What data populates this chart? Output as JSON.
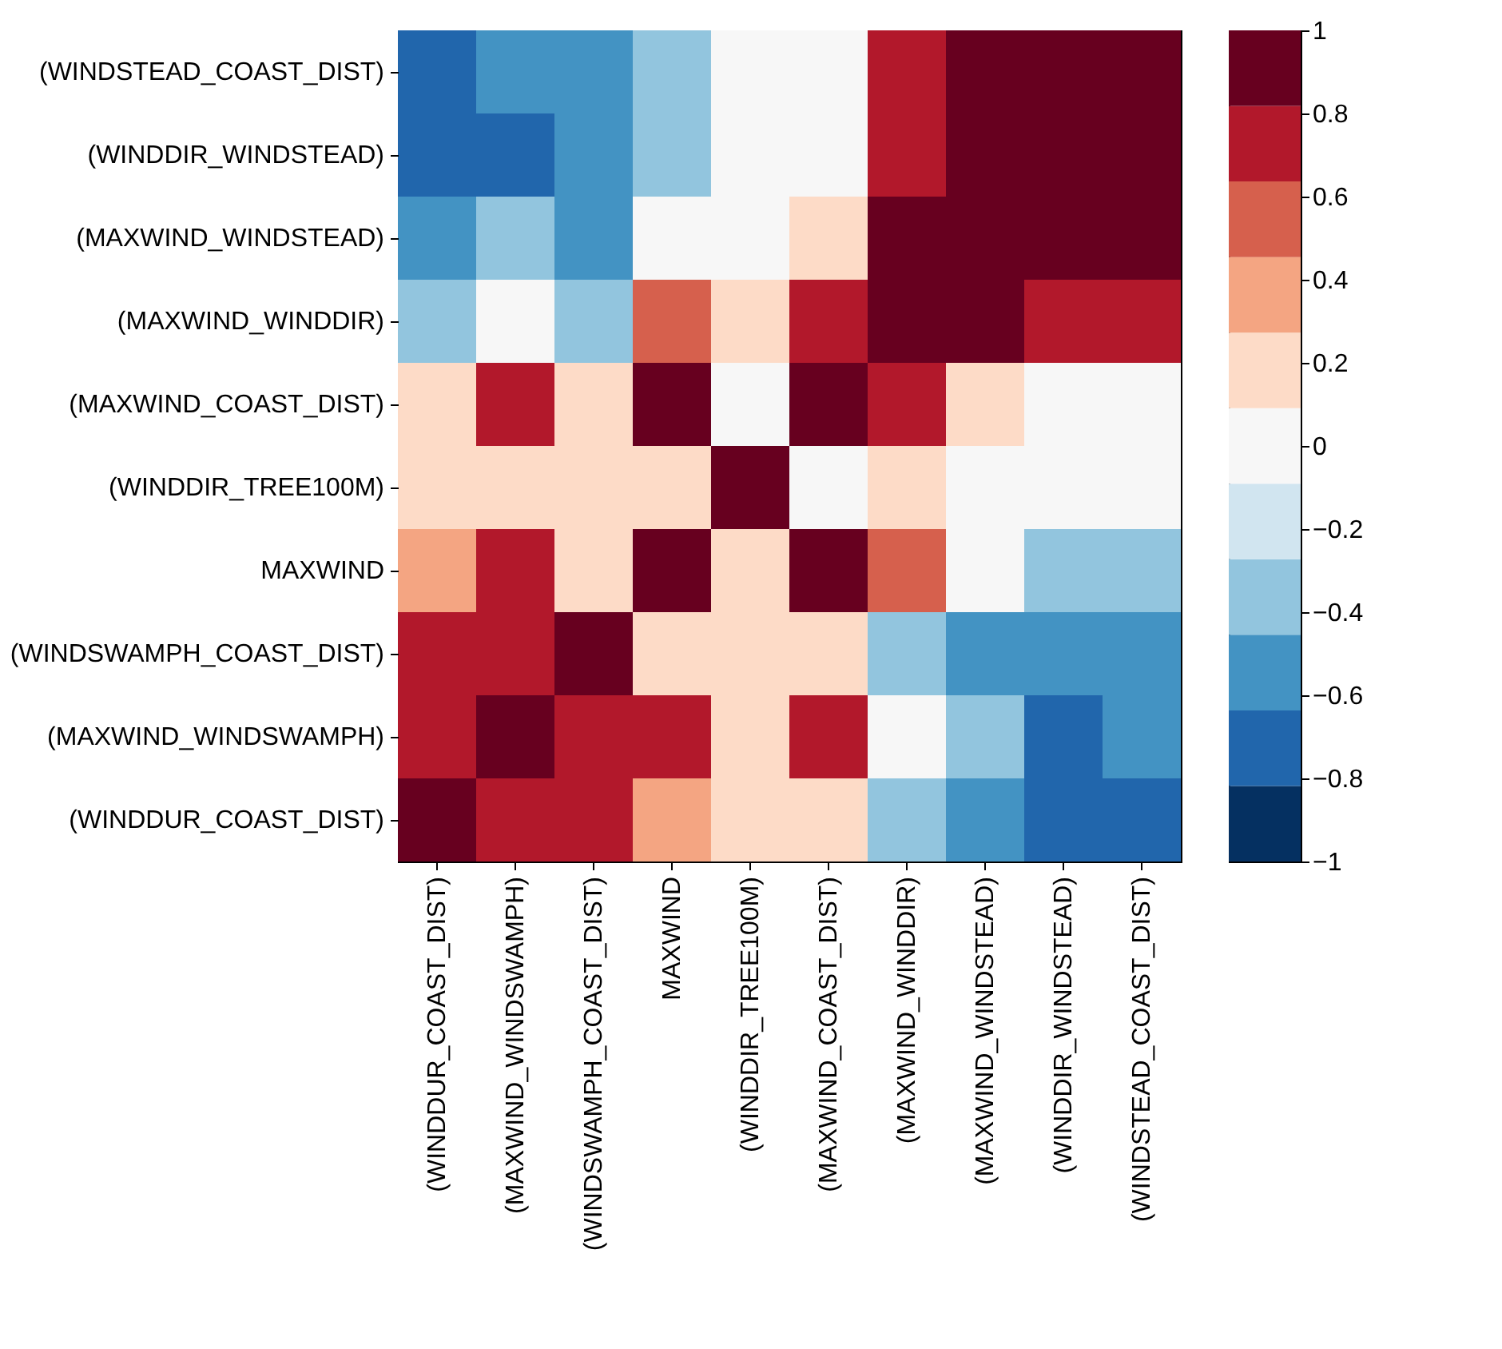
{
  "chart_data": {
    "type": "heatmap",
    "categories": [
      "(WINDDUR_COAST_DIST)",
      "(MAXWIND_WINDSWAMPH)",
      "(WINDSWAMPH_COAST_DIST)",
      "MAXWIND",
      "(WINDDIR_TREE100M)",
      "(MAXWIND_COAST_DIST)",
      "(MAXWIND_WINDDIR)",
      "(MAXWIND_WINDSTEAD)",
      "(WINDDIR_WINDSTEAD)",
      "(WINDSTEAD_COAST_DIST)"
    ],
    "y_categories": [
      "(WINDSTEAD_COAST_DIST)",
      "(WINDDIR_WINDSTEAD)",
      "(MAXWIND_WINDSTEAD)",
      "(MAXWIND_WINDDIR)",
      "(MAXWIND_COAST_DIST)",
      "(WINDDIR_TREE100M)",
      "MAXWIND",
      "(WINDSWAMPH_COAST_DIST)",
      "(MAXWIND_WINDSWAMPH)",
      "(WINDDUR_COAST_DIST)"
    ],
    "cells": [
      [
        -0.7,
        -0.5,
        -0.5,
        -0.4,
        0,
        0,
        0.7,
        0.9,
        0.9,
        1
      ],
      [
        -0.7,
        -0.7,
        -0.5,
        -0.4,
        0,
        0,
        0.7,
        0.9,
        1,
        0.9
      ],
      [
        -0.5,
        -0.4,
        -0.5,
        0,
        0,
        0.2,
        0.9,
        1,
        0.9,
        0.9
      ],
      [
        -0.4,
        0,
        -0.4,
        0.5,
        0.2,
        0.7,
        1,
        0.9,
        0.7,
        0.7
      ],
      [
        0.2,
        0.7,
        0.2,
        0.9,
        0,
        1,
        0.7,
        0.2,
        0,
        0
      ],
      [
        0.2,
        0.2,
        0.2,
        0.2,
        1,
        0,
        0.2,
        0,
        0,
        0
      ],
      [
        0.4,
        0.7,
        0.2,
        1,
        0.2,
        0.9,
        0.5,
        0,
        -0.4,
        -0.4
      ],
      [
        0.7,
        0.7,
        1,
        0.2,
        0.2,
        0.2,
        -0.4,
        -0.5,
        -0.5,
        -0.5
      ],
      [
        0.7,
        1,
        0.7,
        0.7,
        0.2,
        0.7,
        0,
        -0.4,
        -0.7,
        -0.5
      ],
      [
        1,
        0.7,
        0.7,
        0.4,
        0.2,
        0.2,
        -0.4,
        -0.5,
        -0.7,
        -0.7
      ]
    ],
    "clim": [
      -1,
      1
    ],
    "cticks": [
      -1,
      -0.8,
      -0.6,
      -0.4,
      -0.2,
      0,
      0.2,
      0.4,
      0.6,
      0.8,
      1
    ],
    "colors": [
      "#053061",
      "#2166ac",
      "#4393c3",
      "#92c5de",
      "#d1e5f0",
      "#f7f7f7",
      "#fddbc7",
      "#f4a582",
      "#d6604d",
      "#b2182b",
      "#67001f"
    ]
  }
}
